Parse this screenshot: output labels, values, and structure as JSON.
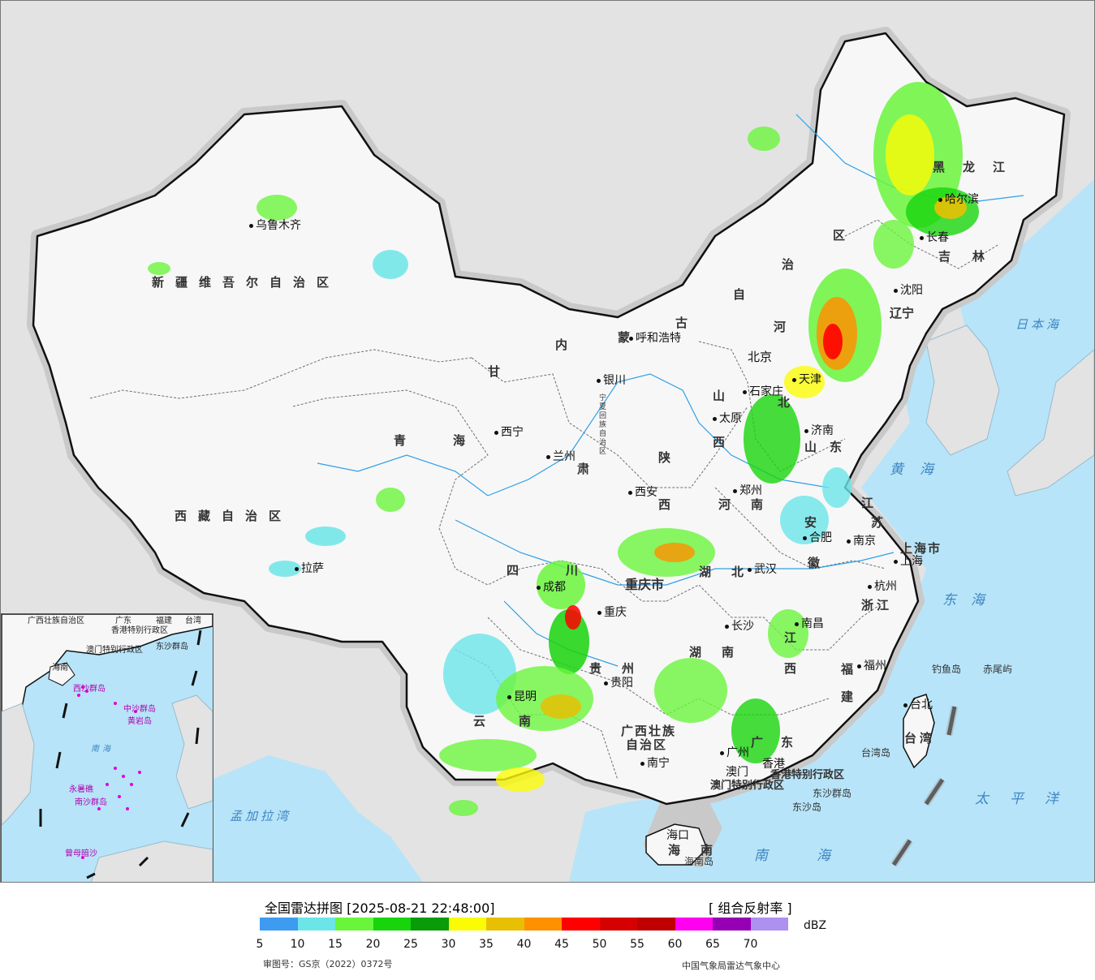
{
  "provinces": [
    {
      "id": "xinjiang",
      "label": "新疆维吾尔自治区"
    },
    {
      "id": "xizang",
      "label": "西藏自治区"
    },
    {
      "id": "qinghai-label-1",
      "label": "青"
    },
    {
      "id": "qinghai-label-2",
      "label": "海"
    },
    {
      "id": "gansu-label-1",
      "label": "甘"
    },
    {
      "id": "gansu-label-2",
      "label": "肃"
    },
    {
      "id": "neimenggu-1",
      "label": "内"
    },
    {
      "id": "neimenggu-2",
      "label": "蒙"
    },
    {
      "id": "neimenggu-3",
      "label": "古"
    },
    {
      "id": "neimenggu-4",
      "label": "自"
    },
    {
      "id": "neimenggu-5",
      "label": "治"
    },
    {
      "id": "neimenggu-6",
      "label": "区"
    },
    {
      "id": "heilongjiang",
      "label": "黑龙江"
    },
    {
      "id": "jilin-1",
      "label": "吉"
    },
    {
      "id": "jilin-2",
      "label": "林"
    },
    {
      "id": "liaoning-1",
      "label": "辽"
    },
    {
      "id": "liaoning-2",
      "label": "宁"
    },
    {
      "id": "hebei-1",
      "label": "河"
    },
    {
      "id": "hebei-2",
      "label": "北"
    },
    {
      "id": "shanxi-1",
      "label": "山"
    },
    {
      "id": "shanxi-2",
      "label": "西"
    },
    {
      "id": "shandong",
      "label": "山东"
    },
    {
      "id": "henan-1",
      "label": "河"
    },
    {
      "id": "henan-2",
      "label": "南"
    },
    {
      "id": "shaanxi-1",
      "label": "陕"
    },
    {
      "id": "shaanxi-2",
      "label": "西"
    },
    {
      "id": "ningxia",
      "label": "宁夏回族自治区"
    },
    {
      "id": "sichuan-1",
      "label": "四"
    },
    {
      "id": "sichuan-2",
      "label": "川"
    },
    {
      "id": "chongqing",
      "label": "重庆市"
    },
    {
      "id": "hubei-1",
      "label": "湖"
    },
    {
      "id": "hubei-2",
      "label": "北"
    },
    {
      "id": "hunan-1",
      "label": "湖"
    },
    {
      "id": "hunan-2",
      "label": "南"
    },
    {
      "id": "anhui-1",
      "label": "安"
    },
    {
      "id": "anhui-2",
      "label": "徽"
    },
    {
      "id": "jiangsu-1",
      "label": "江"
    },
    {
      "id": "jiangsu-2",
      "label": "苏"
    },
    {
      "id": "shanghai",
      "label": "上海市"
    },
    {
      "id": "zhejiang",
      "label": "浙江"
    },
    {
      "id": "jiangxi-1",
      "label": "江"
    },
    {
      "id": "jiangxi-2",
      "label": "西"
    },
    {
      "id": "fujian-1",
      "label": "福"
    },
    {
      "id": "fujian-2",
      "label": "建"
    },
    {
      "id": "guizhou-1",
      "label": "贵"
    },
    {
      "id": "guizhou-2",
      "label": "州"
    },
    {
      "id": "yunnan-1",
      "label": "云"
    },
    {
      "id": "yunnan-2",
      "label": "南"
    },
    {
      "id": "guangxi-1",
      "label": "广西壮族"
    },
    {
      "id": "guangxi-2",
      "label": "自治区"
    },
    {
      "id": "guangdong",
      "label": "广东"
    },
    {
      "id": "hainan-1",
      "label": "海"
    },
    {
      "id": "hainan-2",
      "label": "南"
    },
    {
      "id": "taiwan",
      "label": "台湾"
    },
    {
      "id": "hk",
      "label": "香港特别行政区"
    },
    {
      "id": "macao",
      "label": "澳门特别行政区"
    }
  ],
  "cities": [
    {
      "id": "urumqi",
      "label": "乌鲁木齐"
    },
    {
      "id": "lhasa",
      "label": "拉萨"
    },
    {
      "id": "xining",
      "label": "西宁"
    },
    {
      "id": "lanzhou",
      "label": "兰州"
    },
    {
      "id": "yinchuan",
      "label": "银川"
    },
    {
      "id": "hohhot",
      "label": "呼和浩特"
    },
    {
      "id": "beijing",
      "label": "北京"
    },
    {
      "id": "tianjin",
      "label": "天津"
    },
    {
      "id": "shijiazhuang",
      "label": "石家庄"
    },
    {
      "id": "taiyuan",
      "label": "太原"
    },
    {
      "id": "jinan",
      "label": "济南"
    },
    {
      "id": "zhengzhou",
      "label": "郑州"
    },
    {
      "id": "xian",
      "label": "西安"
    },
    {
      "id": "chengdu",
      "label": "成都"
    },
    {
      "id": "chongqing-city",
      "label": "重庆"
    },
    {
      "id": "wuhan",
      "label": "武汉"
    },
    {
      "id": "hefei",
      "label": "合肥"
    },
    {
      "id": "nanjing",
      "label": "南京"
    },
    {
      "id": "shanghai-city",
      "label": "上海"
    },
    {
      "id": "hangzhou",
      "label": "杭州"
    },
    {
      "id": "nanchang",
      "label": "南昌"
    },
    {
      "id": "changsha",
      "label": "长沙"
    },
    {
      "id": "fuzhou",
      "label": "福州"
    },
    {
      "id": "guiyang",
      "label": "贵阳"
    },
    {
      "id": "kunming",
      "label": "昆明"
    },
    {
      "id": "nanning",
      "label": "南宁"
    },
    {
      "id": "guangzhou",
      "label": "广州"
    },
    {
      "id": "hongkong",
      "label": "香港"
    },
    {
      "id": "macau",
      "label": "澳门"
    },
    {
      "id": "haikou",
      "label": "海口"
    },
    {
      "id": "taipei",
      "label": "台北"
    },
    {
      "id": "shenyang",
      "label": "沈阳"
    },
    {
      "id": "changchun",
      "label": "长春"
    },
    {
      "id": "harbin",
      "label": "哈尔滨"
    }
  ],
  "seas": [
    {
      "id": "sea-japan",
      "label": "日本海"
    },
    {
      "id": "sea-yellow",
      "label": "黄海"
    },
    {
      "id": "sea-east",
      "label": "东海"
    },
    {
      "id": "sea-pacific",
      "label": "太平洋"
    },
    {
      "id": "sea-south",
      "label": "南海"
    },
    {
      "id": "sea-bengal",
      "label": "孟加拉湾"
    }
  ],
  "islands": [
    {
      "id": "diaoyu",
      "label": "钓鱼岛"
    },
    {
      "id": "chiwei",
      "label": "赤尾屿"
    },
    {
      "id": "taiwan-island",
      "label": "台湾岛"
    },
    {
      "id": "dongsha-islands",
      "label": "东沙群岛"
    },
    {
      "id": "dongsha-island",
      "label": "东沙岛"
    },
    {
      "id": "hainan-island",
      "label": "海南岛"
    }
  ],
  "inset": {
    "guangxi": "广西壮族自治区",
    "guangdong": "广东",
    "fujian": "福建",
    "taiwan": "台湾",
    "hk": "香港特别行政区",
    "macao": "澳门特别行政区",
    "dongsha": "东沙群岛",
    "hainan": "海南",
    "xisha": "西沙群岛",
    "zhongsha": "中沙群岛",
    "huangyan": "黄岩岛",
    "nansha": "南沙群岛",
    "yongshu": "永暑礁",
    "zengmu": "曾母暗沙",
    "south_sea": "南海"
  },
  "legend": {
    "title": "全国雷达拼图 [2025-08-21 22:48:00]",
    "product": "[ 组合反射率 ]",
    "unit": "dBZ",
    "ticks": [
      "5",
      "10",
      "15",
      "20",
      "25",
      "30",
      "35",
      "40",
      "45",
      "50",
      "55",
      "60",
      "65",
      "70"
    ],
    "colors": [
      "#3d9bf0",
      "#6ce5e8",
      "#6af53c",
      "#18d40c",
      "#0a9b08",
      "#fbfb06",
      "#e7c004",
      "#ff9000",
      "#ff0000",
      "#d60000",
      "#c00000",
      "#ff00f0",
      "#9600b4",
      "#ad90f0"
    ],
    "approval": "审图号：GS京（2022）0372号",
    "org": "中国气象局雷达气象中心"
  },
  "colors": {
    "sea": "#b7e4f8",
    "foreign_land": "#e3e3e3",
    "china_land": "#f7f7f7",
    "border": "#111111",
    "halo": "#c9c9c9"
  }
}
